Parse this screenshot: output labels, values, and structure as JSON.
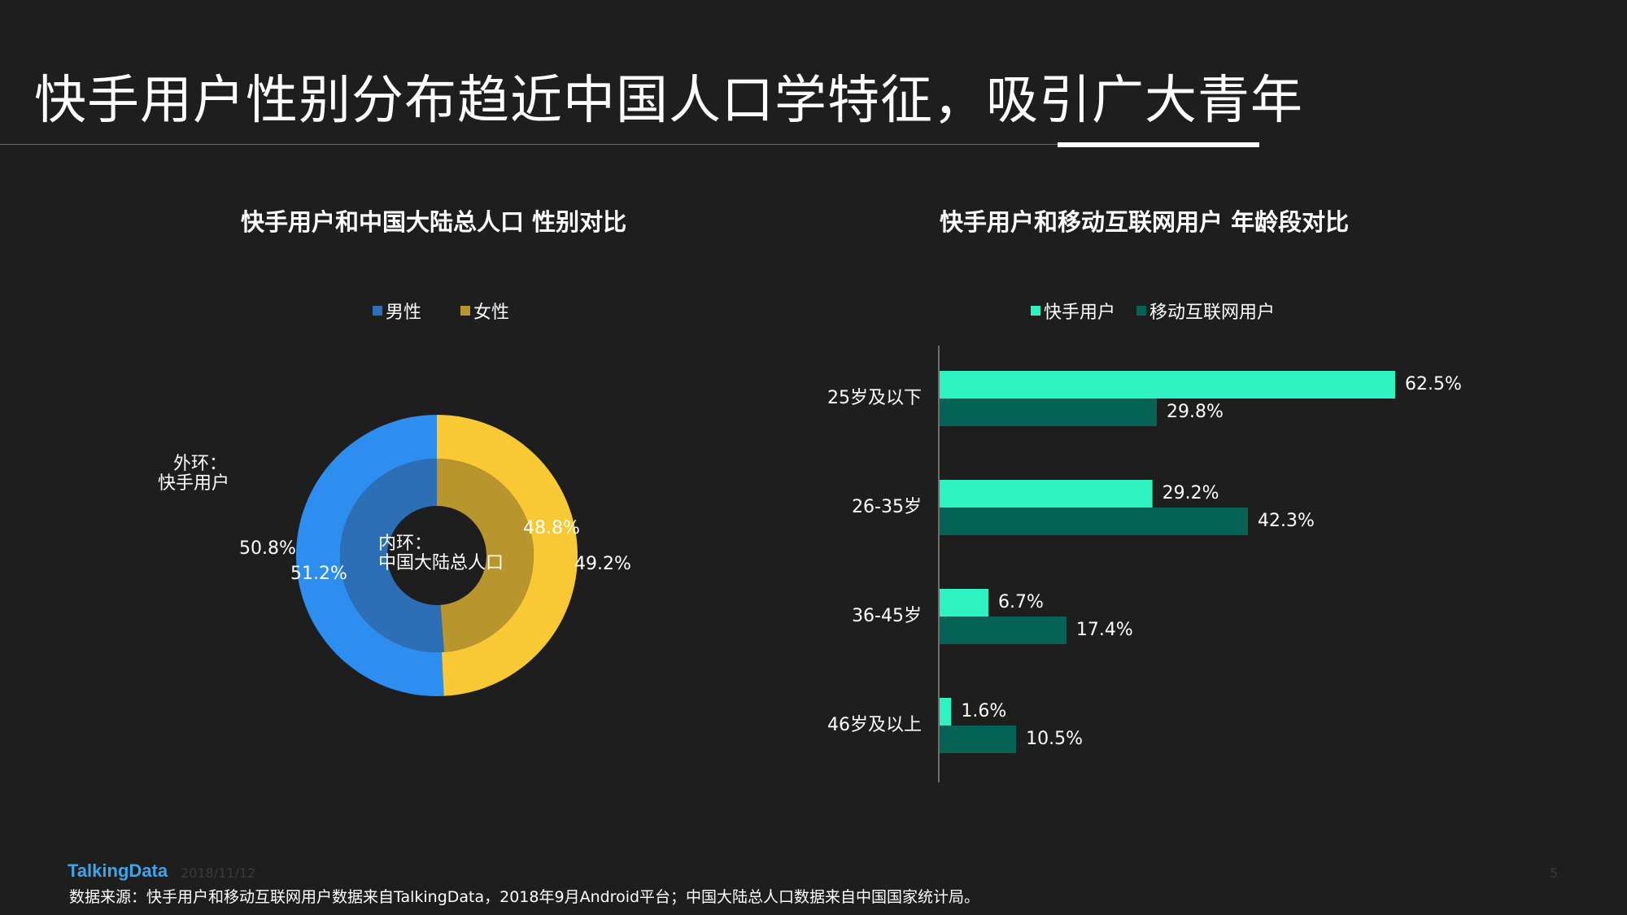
{
  "page": {
    "title": "快手用户性别分布趋近中国人口学特征，吸引广大青年"
  },
  "chart_data": [
    {
      "type": "pie",
      "variant": "donut",
      "title": "快手用户和中国大陆总人口  性别对比",
      "legend": [
        "男性",
        "女性"
      ],
      "legend_position": "top",
      "colors": {
        "outer": [
          "#2e8ef0",
          "#f9c935"
        ],
        "inner": [
          "#2c6fb6",
          "#b9952e"
        ],
        "legend": [
          "#2c6fb6",
          "#b9952e"
        ]
      },
      "rings": [
        {
          "name": "外环：快手用户",
          "label_lines": [
            "外环：",
            "快手用户"
          ],
          "values": [
            50.8,
            49.2
          ],
          "labels": [
            "50.8%",
            "49.2%"
          ]
        },
        {
          "name": "内环：中国大陆总人口",
          "label_lines": [
            "内环：",
            "中国大陆总人口"
          ],
          "values": [
            51.2,
            48.8
          ],
          "labels": [
            "51.2%",
            "48.8%"
          ]
        }
      ]
    },
    {
      "type": "bar",
      "orientation": "horizontal",
      "title": "快手用户和移动互联网用户  年龄段对比",
      "categories": [
        "25岁及以下",
        "26-35岁",
        "36-45岁",
        "46岁及以上"
      ],
      "series": [
        {
          "name": "快手用户",
          "color": "#2ef2bf",
          "values": [
            62.5,
            29.2,
            6.7,
            1.6
          ],
          "labels": [
            "62.5%",
            "29.2%",
            "6.7%",
            "1.6%"
          ]
        },
        {
          "name": "移动互联网用户",
          "color": "#056356",
          "values": [
            29.8,
            42.3,
            17.4,
            10.5
          ],
          "labels": [
            "29.8%",
            "42.3%",
            "17.4%",
            "10.5%"
          ]
        }
      ],
      "xlim": [
        0,
        70
      ],
      "legend_position": "top",
      "grid": false
    }
  ],
  "footer": {
    "logo": "TalkingData",
    "date": "2018/11/12",
    "page_number": "5",
    "source": "数据来源：快手用户和移动互联网用户数据来自TalkingData，2018年9月Android平台；中国大陆总人口数据来自中国国家统计局。"
  }
}
